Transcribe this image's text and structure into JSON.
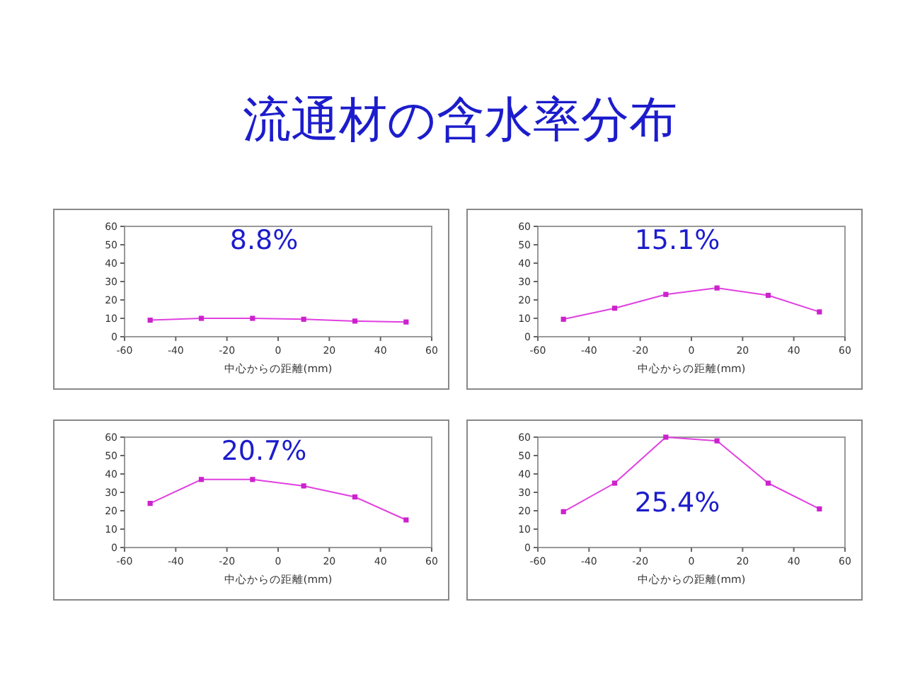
{
  "chart_data": [
    {
      "type": "other",
      "title": "流通材の含水率分布"
    },
    {
      "type": "line",
      "xlabel": "中心からの距離(mm)",
      "annotations": [
        "8.8%"
      ],
      "x": [
        -50,
        -30,
        -10,
        10,
        30,
        50
      ],
      "values": [
        9,
        10,
        10,
        9.5,
        8.5,
        8
      ],
      "color": "#e040e0",
      "marker": "square",
      "xlim": [
        -60,
        60
      ],
      "ylim": [
        0,
        60
      ],
      "xticks": [
        -60,
        -40,
        -20,
        0,
        20,
        40,
        60
      ],
      "yticks": [
        0,
        10,
        20,
        30,
        40,
        50,
        60
      ]
    },
    {
      "type": "line",
      "xlabel": "中心からの距離(mm)",
      "annotations": [
        "15.1%"
      ],
      "x": [
        -50,
        -30,
        -10,
        10,
        30,
        50
      ],
      "values": [
        9.5,
        15.5,
        23,
        26.5,
        22.5,
        13.5
      ],
      "color": "#e040e0",
      "marker": "square",
      "xlim": [
        -60,
        60
      ],
      "ylim": [
        0,
        60
      ],
      "xticks": [
        -60,
        -40,
        -20,
        0,
        20,
        40,
        60
      ],
      "yticks": [
        0,
        10,
        20,
        30,
        40,
        50,
        60
      ]
    },
    {
      "type": "line",
      "xlabel": "中心からの距離(mm)",
      "annotations": [
        "20.7%"
      ],
      "x": [
        -50,
        -30,
        -10,
        10,
        30,
        50
      ],
      "values": [
        24,
        37,
        37,
        33.5,
        27.5,
        15
      ],
      "color": "#e040e0",
      "marker": "square",
      "xlim": [
        -60,
        60
      ],
      "ylim": [
        0,
        60
      ],
      "xticks": [
        -60,
        -40,
        -20,
        0,
        20,
        40,
        60
      ],
      "yticks": [
        0,
        10,
        20,
        30,
        40,
        50,
        60
      ]
    },
    {
      "type": "line",
      "xlabel": "中心からの距離(mm)",
      "annotations": [
        "25.4%"
      ],
      "x": [
        -50,
        -30,
        -10,
        10,
        30,
        50
      ],
      "values": [
        19.5,
        35,
        60,
        58,
        35,
        21
      ],
      "color": "#e040e0",
      "marker": "square",
      "xlim": [
        -60,
        60
      ],
      "ylim": [
        0,
        60
      ],
      "xticks": [
        -60,
        -40,
        -20,
        0,
        20,
        40,
        60
      ],
      "yticks": [
        0,
        10,
        20,
        30,
        40,
        50,
        60
      ]
    }
  ]
}
